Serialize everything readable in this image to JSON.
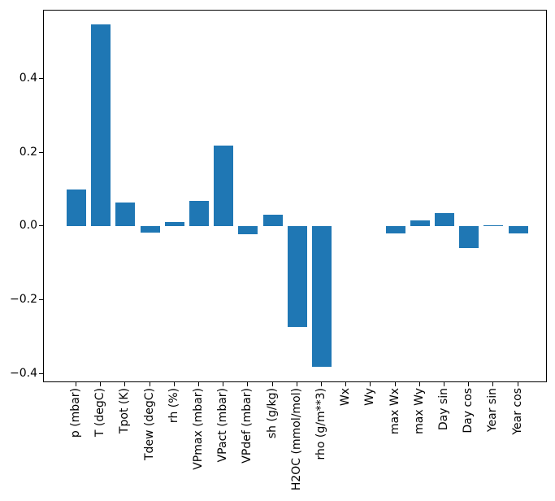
{
  "chart_data": {
    "type": "bar",
    "categories": [
      "p (mbar)",
      "T (degC)",
      "Tpot (K)",
      "Tdew (degC)",
      "rh (%)",
      "VPmax (mbar)",
      "VPact (mbar)",
      "VPdef (mbar)",
      "sh (g/kg)",
      "H2OC (mmol/mol)",
      "rho (g/m**3)",
      "Wx",
      "Wy",
      "max Wx",
      "max Wy",
      "Day sin",
      "Day cos",
      "Year sin",
      "Year cos"
    ],
    "values": [
      0.1,
      0.547,
      0.065,
      -0.016,
      0.012,
      0.069,
      0.218,
      -0.021,
      0.032,
      -0.272,
      -0.38,
      0.0,
      0.0,
      -0.02,
      0.016,
      0.035,
      -0.059,
      0.003,
      -0.02
    ],
    "yticks": [
      0.4,
      0.2,
      0.0,
      -0.2,
      -0.4
    ],
    "ytick_labels": [
      "0.4",
      "0.2",
      "0.0",
      "−0.2",
      "−0.4"
    ],
    "ylim": [
      -0.425,
      0.585
    ],
    "bar_color": "#1f77b4",
    "axis_color": "#000000",
    "background_color": "#ffffff",
    "grid": false,
    "legend_position": "none",
    "x_label_rotation_deg": 90
  }
}
